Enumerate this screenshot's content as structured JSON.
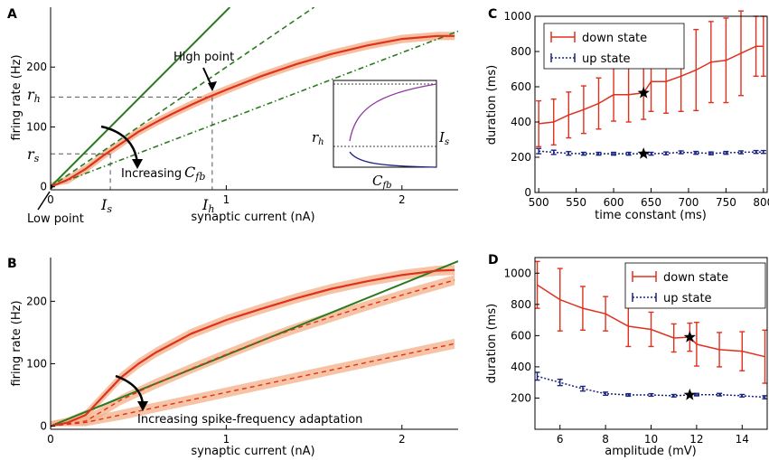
{
  "colors": {
    "red": "#e0301e",
    "band": "#f4b48e",
    "green": "#2a7a1e",
    "blue": "#1a237e",
    "purple": "#8e3a9e"
  },
  "panelA": {
    "label": "A",
    "ylabel": "firing rate (Hz)",
    "xlabel": "synaptic current (nA)",
    "xticks": [
      "0",
      "1",
      "2"
    ],
    "yticks": [
      "0",
      "100",
      "200"
    ],
    "annotations": {
      "high": "High point",
      "low": "Low point",
      "increasing": "Increasing",
      "cfb": "C",
      "fb_sub": "fb",
      "rh": "r",
      "rh_sub": "h",
      "rs": "r",
      "rs_sub": "s",
      "Is": "I",
      "Is_sub": "s",
      "Ih": "I",
      "Ih_sub": "h"
    },
    "inset": {
      "rh": "r",
      "rh_sub": "h",
      "Is": "I",
      "Is_sub": "s",
      "cfb": "C",
      "cfb_sub": "fb"
    }
  },
  "panelB": {
    "label": "B",
    "ylabel": "firing rate (Hz)",
    "xlabel": "synaptic current (nA)",
    "xticks": [
      "0",
      "1",
      "2"
    ],
    "yticks": [
      "0",
      "100",
      "200"
    ],
    "annotation": "Increasing spike-frequency adaptation"
  },
  "panelC": {
    "label": "C",
    "ylabel": "duration (ms)",
    "xlabel": "time constant (ms)",
    "legend": [
      "down state",
      "up state"
    ],
    "xticks": [
      "500",
      "550",
      "600",
      "650",
      "700",
      "750",
      "800"
    ],
    "yticks": [
      "0",
      "200",
      "400",
      "600",
      "800",
      "1000"
    ]
  },
  "panelD": {
    "label": "D",
    "ylabel": "duration (ms)",
    "xlabel": "amplitude (mV)",
    "legend": [
      "down state",
      "up state"
    ],
    "xticks": [
      "6",
      "8",
      "10",
      "12",
      "14"
    ],
    "yticks": [
      "200",
      "400",
      "600",
      "800",
      "1000"
    ]
  },
  "chart_data": [
    {
      "panel": "A",
      "type": "line",
      "title": "",
      "xlabel": "synaptic current (nA)",
      "ylabel": "firing rate (Hz)",
      "xlim": [
        0,
        2.32
      ],
      "ylim": [
        -5,
        300
      ],
      "series": [
        {
          "name": "firing rate (red, with shaded band)",
          "x": [
            0,
            0.1,
            0.2,
            0.3,
            0.4,
            0.5,
            0.6,
            0.7,
            0.8,
            0.9,
            1.0,
            1.2,
            1.4,
            1.6,
            1.8,
            2.0,
            2.2,
            2.3
          ],
          "values": [
            0,
            12,
            30,
            52,
            72,
            92,
            108,
            123,
            137,
            150,
            162,
            185,
            205,
            222,
            236,
            247,
            252,
            252
          ]
        },
        {
          "name": "high-point tangent (green solid)",
          "x": [
            0,
            1.02
          ],
          "values": [
            0,
            300
          ]
        },
        {
          "name": "dashed line (green)",
          "x": [
            0,
            1.5
          ],
          "values": [
            0,
            300
          ]
        },
        {
          "name": "dash-dot line (green)",
          "x": [
            0,
            2.32
          ],
          "values": [
            0,
            260
          ]
        }
      ],
      "markers": {
        "rh": 150,
        "rs": 55,
        "Is": 0.34,
        "Ih": 0.92
      }
    },
    {
      "panel": "B",
      "type": "line",
      "title": "",
      "xlabel": "synaptic current (nA)",
      "ylabel": "firing rate (Hz)",
      "xlim": [
        0,
        2.32
      ],
      "ylim": [
        -5,
        270
      ],
      "series": [
        {
          "name": "no adaptation (red solid)",
          "x": [
            0,
            0.1,
            0.2,
            0.3,
            0.4,
            0.5,
            0.6,
            0.8,
            1.0,
            1.2,
            1.4,
            1.6,
            1.8,
            2.0,
            2.2,
            2.3
          ],
          "values": [
            0,
            6,
            18,
            48,
            78,
            100,
            118,
            148,
            170,
            188,
            205,
            220,
            232,
            242,
            249,
            250
          ]
        },
        {
          "name": "moderate adaptation (red dashed)",
          "x": [
            0,
            0.2,
            0.4,
            0.6,
            0.8,
            1.0,
            1.2,
            1.4,
            1.6,
            1.8,
            2.0,
            2.2,
            2.3
          ],
          "values": [
            0,
            8,
            42,
            68,
            92,
            115,
            137,
            157,
            175,
            193,
            210,
            226,
            234
          ]
        },
        {
          "name": "strong adaptation (red dashed)",
          "x": [
            0,
            0.2,
            0.4,
            0.6,
            0.8,
            1.0,
            1.2,
            1.4,
            1.6,
            1.8,
            2.0,
            2.2,
            2.3
          ],
          "values": [
            0,
            6,
            18,
            30,
            42,
            54,
            66,
            78,
            90,
            102,
            114,
            126,
            132
          ]
        },
        {
          "name": "reference line (green)",
          "x": [
            0,
            2.32
          ],
          "values": [
            0,
            264
          ]
        }
      ]
    },
    {
      "panel": "C",
      "type": "line",
      "title": "",
      "xlabel": "time constant (ms)",
      "ylabel": "duration (ms)",
      "xlim": [
        495,
        805
      ],
      "ylim": [
        0,
        1000
      ],
      "x": [
        500,
        520,
        540,
        560,
        580,
        600,
        620,
        640,
        650,
        670,
        690,
        710,
        730,
        750,
        770,
        790,
        800
      ],
      "series": [
        {
          "name": "down state",
          "values": [
            390,
            400,
            440,
            470,
            505,
            555,
            555,
            565,
            630,
            630,
            660,
            695,
            740,
            750,
            790,
            830,
            830
          ],
          "errors": [
            130,
            130,
            130,
            135,
            145,
            150,
            155,
            150,
            170,
            180,
            200,
            230,
            230,
            240,
            240,
            170,
            170
          ]
        },
        {
          "name": "up state",
          "values": [
            235,
            228,
            222,
            220,
            220,
            220,
            220,
            220,
            220,
            222,
            228,
            225,
            222,
            225,
            228,
            230,
            230
          ],
          "errors": [
            15,
            12,
            10,
            8,
            8,
            8,
            8,
            8,
            8,
            8,
            8,
            8,
            8,
            8,
            8,
            8,
            8
          ]
        }
      ],
      "star": {
        "x": 640,
        "values": [
          565,
          220
        ]
      }
    },
    {
      "panel": "D",
      "type": "line",
      "title": "",
      "xlabel": "amplitude (mV)",
      "ylabel": "duration (ms)",
      "xlim": [
        4.9,
        15.1
      ],
      "ylim": [
        0,
        1100
      ],
      "x": [
        5,
        6,
        7,
        8,
        9,
        10,
        11,
        11.7,
        12,
        13,
        14,
        15
      ],
      "series": [
        {
          "name": "down state",
          "values": [
            925,
            830,
            775,
            740,
            660,
            640,
            585,
            590,
            545,
            510,
            500,
            465
          ],
          "errors": [
            150,
            200,
            140,
            110,
            130,
            110,
            90,
            90,
            140,
            110,
            125,
            170
          ]
        },
        {
          "name": "up state",
          "values": [
            340,
            300,
            260,
            228,
            220,
            220,
            215,
            220,
            222,
            222,
            215,
            205
          ],
          "errors": [
            25,
            20,
            15,
            10,
            8,
            8,
            8,
            8,
            8,
            8,
            8,
            10
          ]
        }
      ],
      "star": {
        "x": 11.7,
        "values": [
          590,
          220
        ]
      }
    }
  ]
}
